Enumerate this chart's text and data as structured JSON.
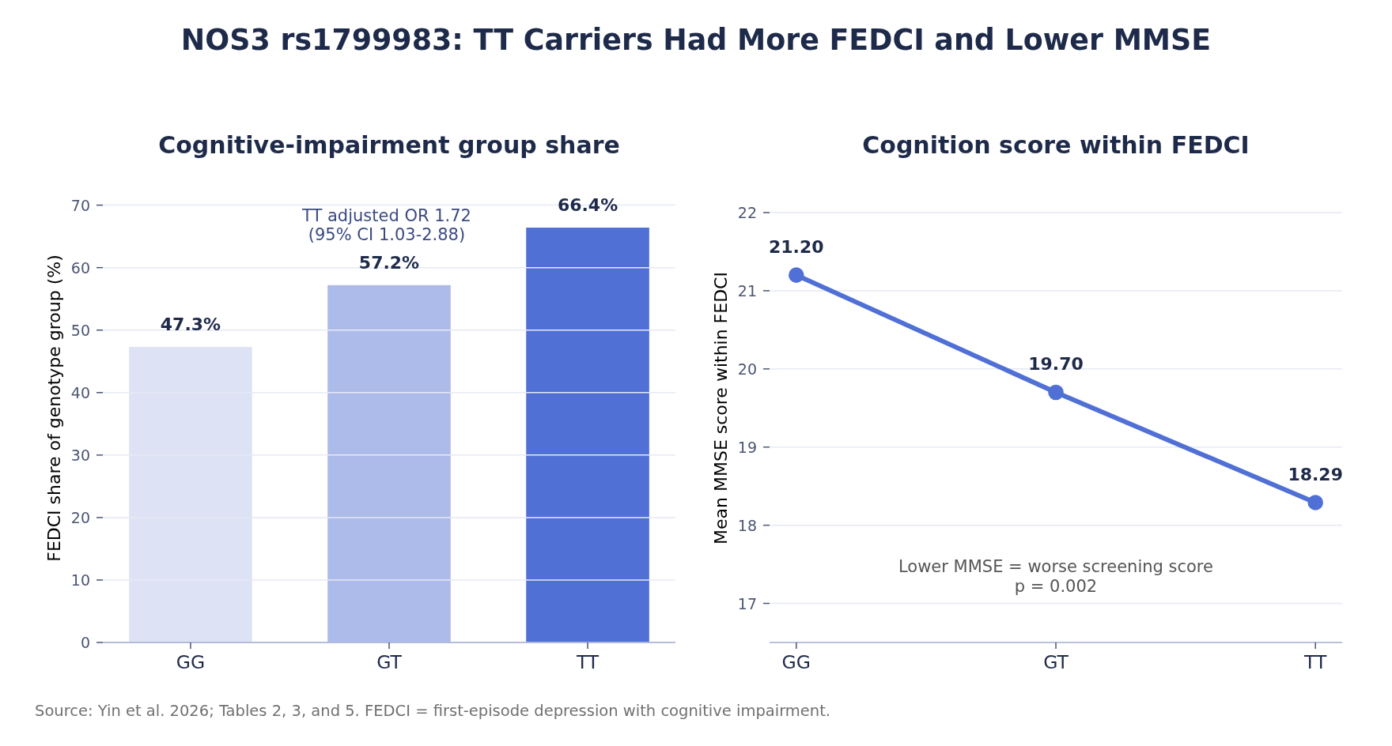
{
  "chart_data": [
    {
      "type": "bar",
      "title": "Cognitive-impairment group share",
      "ylabel": "FEDCI share of genotype group (%)",
      "categories": [
        "GG",
        "GT",
        "TT"
      ],
      "values": [
        47.3,
        57.2,
        66.4
      ],
      "colors": [
        "#dde3f4",
        "#adbbea",
        "#5070d6"
      ],
      "value_labels": [
        "47.3%",
        "57.2%",
        "66.4%"
      ],
      "ylim": [
        0,
        70
      ],
      "yticks": [
        0,
        10,
        20,
        30,
        40,
        50,
        60,
        70
      ],
      "grid": "y",
      "annotations": [
        "NOS3 rs1799983: TT Carriers Had More FEDCI and Lower MMSE",
        "TT adjusted OR 1.72\n(95% CI 1.03-2.88)",
        "Source: Yin et al. 2026; Tables 2, 3, and 5. FEDCI = first-episode depression with cognitive impairment."
      ]
    },
    {
      "type": "line",
      "title": "Cognition score within FEDCI",
      "ylabel": "Mean MMSE score within FEDCI",
      "categories": [
        "GG",
        "GT",
        "TT"
      ],
      "series": [
        {
          "color": "#5070d6",
          "values": [
            21.2,
            19.7,
            18.29
          ],
          "value_labels": [
            "21.20",
            "19.70",
            "18.29"
          ]
        }
      ],
      "marker": "circle",
      "ylim": [
        16.5,
        22
      ],
      "yticks": [
        17,
        18,
        19,
        20,
        21,
        22
      ],
      "grid": "y",
      "annotations": [
        "Lower MMSE = worse screening score\np = 0.002"
      ]
    }
  ]
}
